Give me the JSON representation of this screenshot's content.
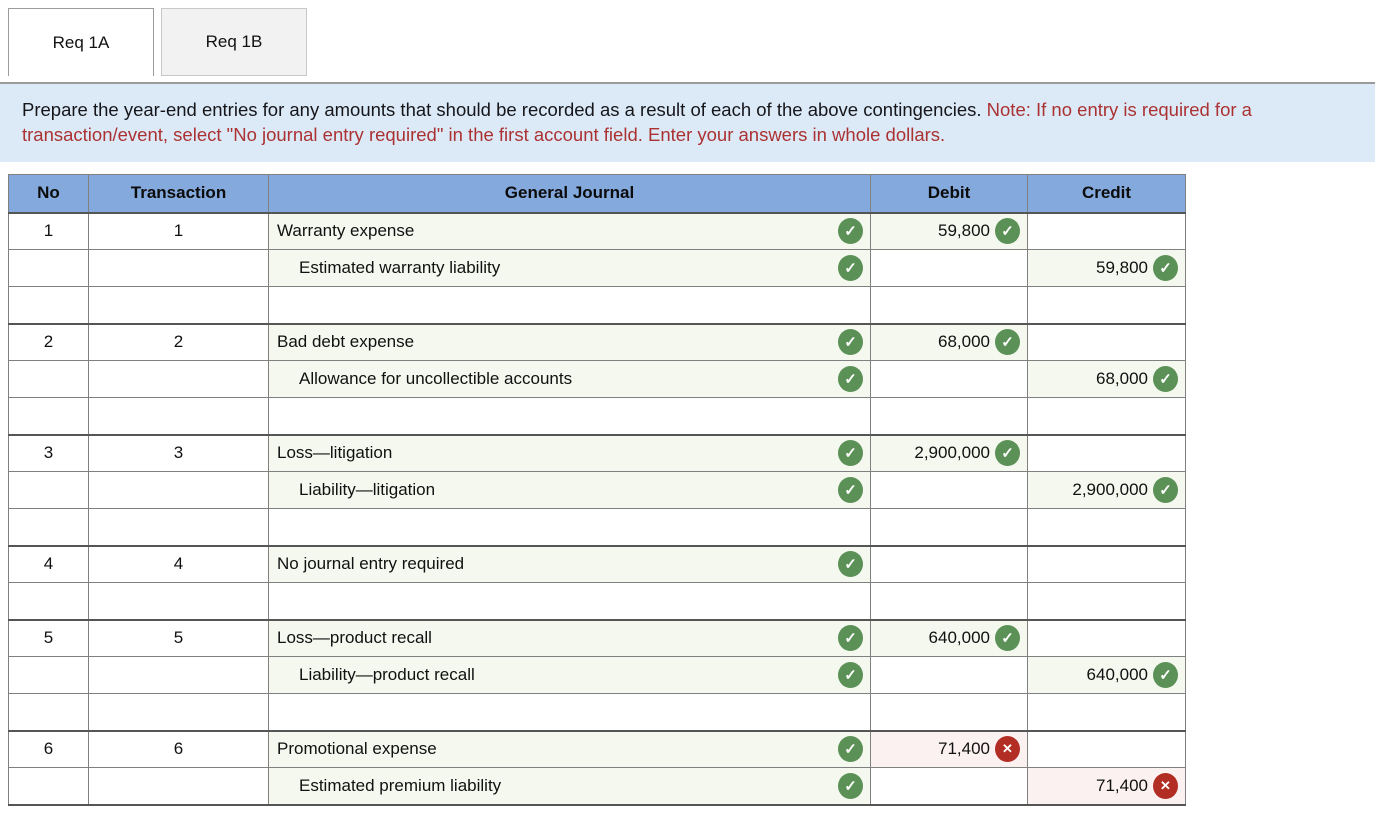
{
  "tabs": [
    {
      "label": "Req 1A",
      "active": true
    },
    {
      "label": "Req 1B",
      "active": false
    }
  ],
  "instructions": {
    "main": "Prepare the year-end entries for any amounts that should be recorded as a result of each of the above contingencies.",
    "note": "Note: If no entry is required for a transaction/event, select \"No journal entry required\" in the first account field. Enter your answers in whole dollars."
  },
  "colors": {
    "header_bg": "#84a9dc",
    "panel_bg": "#dceaf8",
    "note_red": "#ab3232",
    "correct_green": "#5b9156",
    "incorrect_red": "#b22e25",
    "filled_cell_tint": "#f4f8ef",
    "error_cell_tint": "#fcf1f1"
  },
  "icons": {
    "correct": "check-circle-icon",
    "incorrect": "x-circle-icon"
  },
  "table": {
    "headers": {
      "no": "No",
      "transaction": "Transaction",
      "journal": "General Journal",
      "debit": "Debit",
      "credit": "Credit"
    },
    "rows": [
      {
        "no": "1",
        "transaction": "1",
        "account": "Warranty expense",
        "indent": false,
        "account_mark": "correct",
        "debit": "59,800",
        "debit_mark": "correct",
        "credit": "",
        "credit_mark": "",
        "spacer": false,
        "group_start": true
      },
      {
        "no": "",
        "transaction": "",
        "account": "Estimated warranty liability",
        "indent": true,
        "account_mark": "correct",
        "debit": "",
        "debit_mark": "",
        "credit": "59,800",
        "credit_mark": "correct",
        "spacer": false,
        "group_start": false
      },
      {
        "no": "",
        "transaction": "",
        "account": "",
        "indent": false,
        "account_mark": "",
        "debit": "",
        "debit_mark": "",
        "credit": "",
        "credit_mark": "",
        "spacer": true,
        "group_start": false
      },
      {
        "no": "2",
        "transaction": "2",
        "account": "Bad debt expense",
        "indent": false,
        "account_mark": "correct",
        "debit": "68,000",
        "debit_mark": "correct",
        "credit": "",
        "credit_mark": "",
        "spacer": false,
        "group_start": true
      },
      {
        "no": "",
        "transaction": "",
        "account": "Allowance for uncollectible accounts",
        "indent": true,
        "account_mark": "correct",
        "debit": "",
        "debit_mark": "",
        "credit": "68,000",
        "credit_mark": "correct",
        "spacer": false,
        "group_start": false
      },
      {
        "no": "",
        "transaction": "",
        "account": "",
        "indent": false,
        "account_mark": "",
        "debit": "",
        "debit_mark": "",
        "credit": "",
        "credit_mark": "",
        "spacer": true,
        "group_start": false
      },
      {
        "no": "3",
        "transaction": "3",
        "account": "Loss—litigation",
        "indent": false,
        "account_mark": "correct",
        "debit": "2,900,000",
        "debit_mark": "correct",
        "credit": "",
        "credit_mark": "",
        "spacer": false,
        "group_start": true
      },
      {
        "no": "",
        "transaction": "",
        "account": "Liability—litigation",
        "indent": true,
        "account_mark": "correct",
        "debit": "",
        "debit_mark": "",
        "credit": "2,900,000",
        "credit_mark": "correct",
        "spacer": false,
        "group_start": false
      },
      {
        "no": "",
        "transaction": "",
        "account": "",
        "indent": false,
        "account_mark": "",
        "debit": "",
        "debit_mark": "",
        "credit": "",
        "credit_mark": "",
        "spacer": true,
        "group_start": false
      },
      {
        "no": "4",
        "transaction": "4",
        "account": "No journal entry required",
        "indent": false,
        "account_mark": "correct",
        "debit": "",
        "debit_mark": "",
        "credit": "",
        "credit_mark": "",
        "spacer": false,
        "group_start": true
      },
      {
        "no": "",
        "transaction": "",
        "account": "",
        "indent": false,
        "account_mark": "",
        "debit": "",
        "debit_mark": "",
        "credit": "",
        "credit_mark": "",
        "spacer": true,
        "group_start": false
      },
      {
        "no": "5",
        "transaction": "5",
        "account": "Loss—product recall",
        "indent": false,
        "account_mark": "correct",
        "debit": "640,000",
        "debit_mark": "correct",
        "credit": "",
        "credit_mark": "",
        "spacer": false,
        "group_start": true
      },
      {
        "no": "",
        "transaction": "",
        "account": "Liability—product recall",
        "indent": true,
        "account_mark": "correct",
        "debit": "",
        "debit_mark": "",
        "credit": "640,000",
        "credit_mark": "correct",
        "spacer": false,
        "group_start": false
      },
      {
        "no": "",
        "transaction": "",
        "account": "",
        "indent": false,
        "account_mark": "",
        "debit": "",
        "debit_mark": "",
        "credit": "",
        "credit_mark": "",
        "spacer": true,
        "group_start": false
      },
      {
        "no": "6",
        "transaction": "6",
        "account": "Promotional expense",
        "indent": false,
        "account_mark": "correct",
        "debit": "71,400",
        "debit_mark": "incorrect",
        "credit": "",
        "credit_mark": "",
        "spacer": false,
        "group_start": true
      },
      {
        "no": "",
        "transaction": "",
        "account": "Estimated premium liability",
        "indent": true,
        "account_mark": "correct",
        "debit": "",
        "debit_mark": "",
        "credit": "71,400",
        "credit_mark": "incorrect",
        "spacer": false,
        "group_start": false
      }
    ]
  }
}
